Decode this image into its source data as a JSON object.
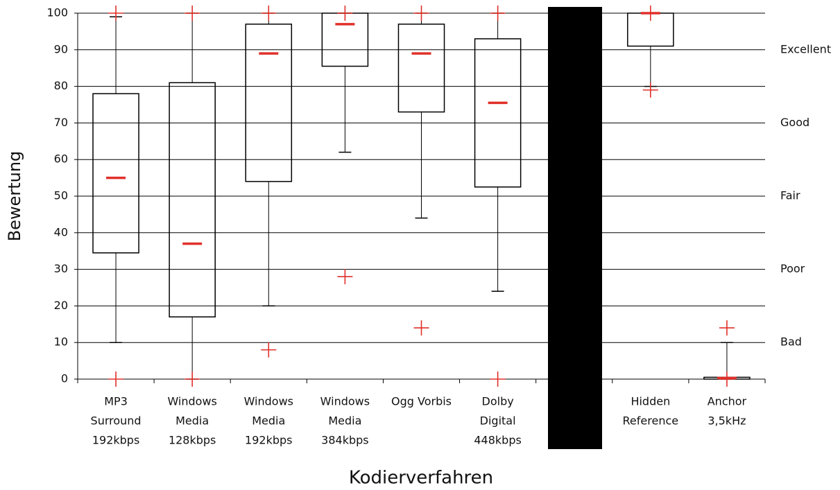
{
  "chart_data": {
    "type": "box",
    "x_label": "Kodierverfahren",
    "y_label": "Bewertung",
    "categories": [
      [
        "MP3",
        "Surround",
        "192kbps"
      ],
      [
        "Windows",
        "Media",
        "128kbps"
      ],
      [
        "Windows",
        "Media",
        "192kbps"
      ],
      [
        "Windows",
        "Media",
        "384kbps"
      ],
      [
        "Ogg Vorbis"
      ],
      [
        "Dolby",
        "Digital",
        "448kbps"
      ],
      null,
      [
        "Hidden",
        "Reference"
      ],
      [
        "Anchor",
        "3,5kHz"
      ]
    ],
    "boxes": [
      {
        "low": 10,
        "q1": 34.5,
        "median": 55,
        "q3": 78,
        "high": 99,
        "outliers": [
          100,
          0
        ]
      },
      {
        "low": 0,
        "q1": 17,
        "median": 37,
        "q3": 81,
        "high": 100,
        "outliers": [
          100,
          0
        ]
      },
      {
        "low": 20,
        "q1": 54,
        "median": 89,
        "q3": 97,
        "high": 100,
        "outliers": [
          100,
          8
        ]
      },
      {
        "low": 62,
        "q1": 85.5,
        "median": 97,
        "q3": 100,
        "high": 100,
        "outliers": [
          100,
          28
        ]
      },
      {
        "low": 44,
        "q1": 73,
        "median": 89,
        "q3": 97,
        "high": 100,
        "outliers": [
          100,
          14
        ]
      },
      {
        "low": 24,
        "q1": 52.5,
        "median": 75.5,
        "q3": 93,
        "high": 100,
        "outliers": [
          100,
          0
        ]
      },
      null,
      {
        "low": 80,
        "q1": 91,
        "median": 100,
        "q3": 100,
        "high": 100,
        "outliers": [
          100,
          79
        ]
      },
      {
        "low": 0,
        "q1": 0,
        "median": 0.3,
        "q3": 0.5,
        "high": 10,
        "outliers": [
          14,
          0
        ]
      }
    ],
    "box_color": "#000000",
    "median_color": "#e0302a",
    "outlier_color": "#e0302a",
    "ylim": [
      0,
      100
    ],
    "yticks": [
      0,
      10,
      20,
      30,
      40,
      50,
      60,
      70,
      80,
      90,
      100
    ],
    "grid": true,
    "y2lim": [
      0,
      100
    ],
    "y2ticks": [
      {
        "value": 90,
        "label": "Excellent"
      },
      {
        "value": 70,
        "label": "Good"
      },
      {
        "value": 50,
        "label": "Fair"
      },
      {
        "value": 30,
        "label": "Poor"
      },
      {
        "value": 10,
        "label": "Bad"
      }
    ]
  }
}
